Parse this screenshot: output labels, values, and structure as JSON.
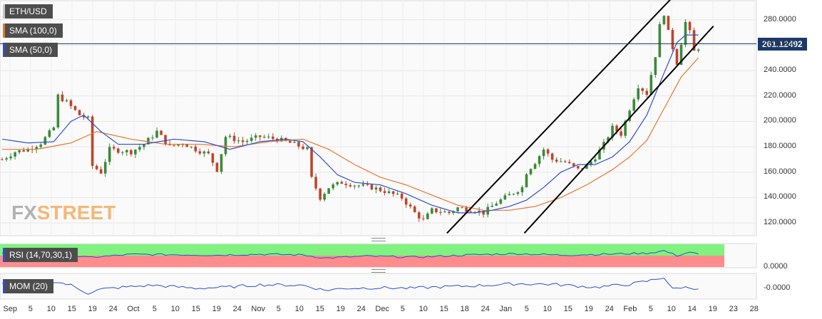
{
  "chart_data": {
    "type": "candlestick",
    "symbol": "ETH/USD",
    "indicators": {
      "sma_100_label": "SMA (100,0)",
      "sma_50_label": "SMA (50,0)",
      "rsi_label": "RSI (14,70,30,1)",
      "mom_label": "MOM (20)"
    },
    "last_price": "261.12492",
    "y_ticks": [
      "280.0000",
      "260.0000",
      "240.0000",
      "220.0000",
      "200.0000",
      "180.0000",
      "160.0000",
      "140.0000",
      "120.0000"
    ],
    "y_tick_values": [
      280,
      260,
      240,
      220,
      200,
      180,
      160,
      140,
      120
    ],
    "ylim": [
      110,
      295
    ],
    "rsi_tick": "0.0000",
    "mom_tick": "-0.0000",
    "x_labels": [
      "Sep",
      "5",
      "10",
      "15",
      "19",
      "24",
      "Oct",
      "5",
      "10",
      "15",
      "19",
      "24",
      "Nov",
      "5",
      "10",
      "15",
      "19",
      "24",
      "Dec",
      "5",
      "10",
      "15",
      "18",
      "24",
      "Jan",
      "5",
      "10",
      "15",
      "19",
      "24",
      "Feb",
      "5",
      "10",
      "14",
      "19",
      "23",
      "28"
    ],
    "price_path": [
      [
        0,
        170
      ],
      [
        3,
        176
      ],
      [
        6,
        178
      ],
      [
        9,
        183
      ],
      [
        12,
        195
      ],
      [
        13,
        220
      ],
      [
        15,
        215
      ],
      [
        18,
        205
      ],
      [
        20,
        202
      ],
      [
        21,
        165
      ],
      [
        23,
        160
      ],
      [
        25,
        178
      ],
      [
        30,
        176
      ],
      [
        33,
        182
      ],
      [
        36,
        192
      ],
      [
        39,
        180
      ],
      [
        42,
        183
      ],
      [
        45,
        178
      ],
      [
        48,
        174
      ],
      [
        50,
        162
      ],
      [
        52,
        188
      ],
      [
        56,
        184
      ],
      [
        60,
        188
      ],
      [
        64,
        186
      ],
      [
        68,
        182
      ],
      [
        71,
        178
      ],
      [
        72,
        155
      ],
      [
        74,
        140
      ],
      [
        76,
        148
      ],
      [
        79,
        152
      ],
      [
        82,
        150
      ],
      [
        86,
        148
      ],
      [
        89,
        145
      ],
      [
        93,
        140
      ],
      [
        96,
        128
      ],
      [
        98,
        122
      ],
      [
        100,
        130
      ],
      [
        104,
        128
      ],
      [
        106,
        132
      ],
      [
        110,
        130
      ],
      [
        112,
        128
      ],
      [
        115,
        136
      ],
      [
        118,
        142
      ],
      [
        121,
        148
      ],
      [
        122,
        160
      ],
      [
        124,
        168
      ],
      [
        126,
        178
      ],
      [
        128,
        170
      ],
      [
        131,
        168
      ],
      [
        134,
        162
      ],
      [
        136,
        165
      ],
      [
        138,
        172
      ],
      [
        140,
        182
      ],
      [
        142,
        195
      ],
      [
        144,
        190
      ],
      [
        146,
        210
      ],
      [
        148,
        228
      ],
      [
        150,
        222
      ],
      [
        152,
        252
      ],
      [
        153,
        275
      ],
      [
        154,
        285
      ],
      [
        155,
        270
      ],
      [
        156,
        258
      ],
      [
        157,
        246
      ],
      [
        158,
        262
      ],
      [
        159,
        278
      ],
      [
        160,
        270
      ],
      [
        161,
        255
      ],
      [
        162,
        258
      ]
    ],
    "sma50_path": [
      [
        0,
        186
      ],
      [
        6,
        183
      ],
      [
        12,
        184
      ],
      [
        16,
        200
      ],
      [
        19,
        205
      ],
      [
        23,
        192
      ],
      [
        27,
        182
      ],
      [
        33,
        182
      ],
      [
        40,
        186
      ],
      [
        47,
        184
      ],
      [
        53,
        178
      ],
      [
        60,
        184
      ],
      [
        66,
        186
      ],
      [
        70,
        184
      ],
      [
        74,
        172
      ],
      [
        78,
        158
      ],
      [
        82,
        152
      ],
      [
        88,
        150
      ],
      [
        94,
        143
      ],
      [
        100,
        134
      ],
      [
        106,
        128
      ],
      [
        110,
        128
      ],
      [
        114,
        130
      ],
      [
        118,
        133
      ],
      [
        122,
        138
      ],
      [
        126,
        148
      ],
      [
        130,
        160
      ],
      [
        134,
        166
      ],
      [
        138,
        166
      ],
      [
        142,
        172
      ],
      [
        146,
        184
      ],
      [
        150,
        205
      ],
      [
        154,
        238
      ],
      [
        157,
        262
      ],
      [
        159,
        268
      ],
      [
        162,
        268
      ]
    ],
    "sma100_path": [
      [
        0,
        178
      ],
      [
        8,
        178
      ],
      [
        16,
        183
      ],
      [
        22,
        192
      ],
      [
        30,
        186
      ],
      [
        38,
        182
      ],
      [
        46,
        182
      ],
      [
        54,
        180
      ],
      [
        62,
        184
      ],
      [
        70,
        186
      ],
      [
        76,
        178
      ],
      [
        82,
        166
      ],
      [
        88,
        156
      ],
      [
        94,
        150
      ],
      [
        100,
        142
      ],
      [
        106,
        134
      ],
      [
        112,
        130
      ],
      [
        118,
        130
      ],
      [
        124,
        133
      ],
      [
        130,
        140
      ],
      [
        136,
        150
      ],
      [
        142,
        162
      ],
      [
        146,
        172
      ],
      [
        150,
        185
      ],
      [
        154,
        210
      ],
      [
        158,
        235
      ],
      [
        162,
        250
      ]
    ],
    "rsi_path": [
      [
        0,
        58
      ],
      [
        12,
        62
      ],
      [
        20,
        42
      ],
      [
        30,
        55
      ],
      [
        40,
        54
      ],
      [
        50,
        52
      ],
      [
        60,
        56
      ],
      [
        70,
        53
      ],
      [
        75,
        40
      ],
      [
        85,
        48
      ],
      [
        95,
        44
      ],
      [
        100,
        46
      ],
      [
        110,
        54
      ],
      [
        120,
        58
      ],
      [
        130,
        52
      ],
      [
        140,
        56
      ],
      [
        150,
        60
      ],
      [
        154,
        70
      ],
      [
        157,
        50
      ],
      [
        160,
        65
      ],
      [
        162,
        55
      ]
    ],
    "mom_path": [
      [
        0,
        0.4
      ],
      [
        8,
        0.8
      ],
      [
        12,
        1.0
      ],
      [
        16,
        0.2
      ],
      [
        20,
        -1.4
      ],
      [
        23,
        -0.6
      ],
      [
        28,
        -0.2
      ],
      [
        35,
        0.2
      ],
      [
        45,
        -0.4
      ],
      [
        52,
        -0.2
      ],
      [
        60,
        0.3
      ],
      [
        70,
        0.2
      ],
      [
        75,
        -0.8
      ],
      [
        80,
        -0.4
      ],
      [
        88,
        -0.3
      ],
      [
        95,
        -0.4
      ],
      [
        100,
        -0.2
      ],
      [
        110,
        0.1
      ],
      [
        120,
        0.5
      ],
      [
        128,
        0.4
      ],
      [
        138,
        -0.2
      ],
      [
        146,
        0.4
      ],
      [
        150,
        1.0
      ],
      [
        154,
        1.8
      ],
      [
        156,
        -0.6
      ],
      [
        158,
        -0.2
      ],
      [
        162,
        -0.4
      ]
    ],
    "channel_lines": {
      "upper": [
        [
          104,
          112
        ],
        [
          156,
          296
        ]
      ],
      "lower": [
        [
          122,
          112
        ],
        [
          166,
          275
        ]
      ]
    },
    "colors": {
      "up": "#3a8a3a",
      "down": "#c0442b",
      "sma50": "#2d4fd1",
      "sma100": "#e8772e",
      "rsi": "#2d4fd1",
      "rsi_over": "#7ff27f",
      "rsi_under": "#ff8c8c",
      "channel": "#000000",
      "last_price_line": "#1a3a6b"
    },
    "grid": true,
    "watermark": {
      "left": "FX",
      "right": "STREET"
    }
  }
}
